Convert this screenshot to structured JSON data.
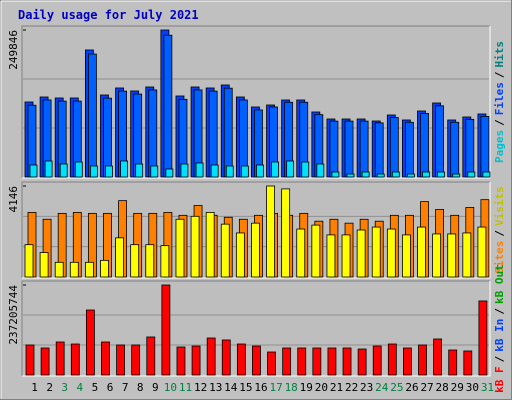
{
  "title": "Daily usage for July 2021",
  "legend_separator": "/",
  "chart_data": [
    {
      "type": "bar",
      "series": [
        {
          "color": "#0040ff",
          "values": [
            127500,
            136000,
            134300,
            134300,
            215900,
            139400,
            151300,
            146200,
            153000,
            249846,
            137700,
            153000,
            151300,
            156400,
            136000,
            119000,
            122400,
            130900,
            130900,
            110500,
            98600,
            98600,
            98600,
            95200,
            105400,
            96900,
            112200,
            125800,
            96900,
            102000,
            107100
          ]
        },
        {
          "color": "#0060ff",
          "values": [
            122000,
            131000,
            129000,
            129000,
            209000,
            134000,
            146000,
            141000,
            148000,
            241000,
            132000,
            148000,
            146000,
            151000,
            131000,
            114000,
            119000,
            127000,
            127000,
            106000,
            95000,
            95000,
            95000,
            92000,
            101000,
            93000,
            108000,
            121000,
            93000,
            98000,
            103000
          ]
        },
        {
          "color": "#00e0ff",
          "values": [
            20400,
            27200,
            22100,
            25500,
            18700,
            18700,
            27200,
            22100,
            18700,
            13600,
            22100,
            23800,
            20400,
            18700,
            18700,
            20400,
            25500,
            27200,
            25500,
            22100,
            8500,
            5100,
            8500,
            5100,
            8500,
            5100,
            8500,
            8500,
            5100,
            8500,
            8500
          ]
        }
      ],
      "legend": [
        {
          "text": "Pages",
          "color": "#00c0d0"
        },
        {
          "text": "Files",
          "color": "#0040ff"
        },
        {
          "text": "Hits",
          "color": "#008080"
        }
      ],
      "ylim": [
        0,
        249846
      ],
      "yticks": [
        249846
      ],
      "grid": true
    },
    {
      "type": "bar",
      "series": [
        {
          "color": "#ff8000",
          "values": [
            2944,
            2631,
            2899,
            2944,
            2899,
            2899,
            3479,
            2899,
            2899,
            2944,
            2810,
            3256,
            2810,
            2721,
            2631,
            2810,
            2899,
            2810,
            2899,
            2542,
            2631,
            2453,
            2631,
            2542,
            2810,
            2810,
            3434,
            3077,
            2810,
            3167,
            3523
          ]
        },
        {
          "color": "#ffff00",
          "values": [
            1472,
            1115,
            669,
            669,
            669,
            758,
            1784,
            1472,
            1472,
            1427,
            2631,
            2765,
            2944,
            2408,
            2007,
            2453,
            4146,
            4014,
            2185,
            2364,
            1918,
            1918,
            2141,
            2275,
            2185,
            1918,
            2275,
            1962,
            1962,
            2007,
            2275
          ]
        }
      ],
      "legend": [
        {
          "text": "Sites",
          "color": "#ff8000"
        },
        {
          "text": "Visits",
          "color": "#c0c000"
        }
      ],
      "ylim": [
        0,
        4146
      ],
      "yticks": [
        4146
      ],
      "grid": true
    },
    {
      "type": "bar",
      "categories": [
        "1",
        "2",
        "3",
        "4",
        "5",
        "6",
        "7",
        "8",
        "9",
        "10",
        "11",
        "12",
        "13",
        "14",
        "15",
        "16",
        "17",
        "18",
        "19",
        "20",
        "21",
        "22",
        "23",
        "24",
        "25",
        "26",
        "27",
        "28",
        "29",
        "30",
        "31"
      ],
      "category_colors": [
        "#000000",
        "#000000",
        "#008040",
        "#008040",
        "#000000",
        "#000000",
        "#000000",
        "#000000",
        "#000000",
        "#008040",
        "#008040",
        "#000000",
        "#000000",
        "#000000",
        "#000000",
        "#000000",
        "#008040",
        "#008040",
        "#000000",
        "#000000",
        "#000000",
        "#000000",
        "#000000",
        "#008040",
        "#008040",
        "#000000",
        "#000000",
        "#000000",
        "#000000",
        "#000000",
        "#008040"
      ],
      "series": [
        {
          "color": "#ff0000",
          "values": [
            79100000,
            71200000,
            87000000,
            81700000,
            171300000,
            87000000,
            79100000,
            79100000,
            100200000,
            237205744,
            73800000,
            76400000,
            97500000,
            92300000,
            81700000,
            76400000,
            60600000,
            71200000,
            71200000,
            71200000,
            71200000,
            71200000,
            68500000,
            76400000,
            81700000,
            71200000,
            79100000,
            94900000,
            65900000,
            63300000,
            195100000
          ]
        }
      ],
      "legend": [
        {
          "text": "kB F",
          "color": "#ff0000"
        },
        {
          "text": "kB In",
          "color": "#0040ff"
        },
        {
          "text": "kB Out",
          "color": "#00a000"
        }
      ],
      "ylim": [
        0,
        237205744
      ],
      "yticks": [
        237205744
      ],
      "grid": true
    }
  ]
}
